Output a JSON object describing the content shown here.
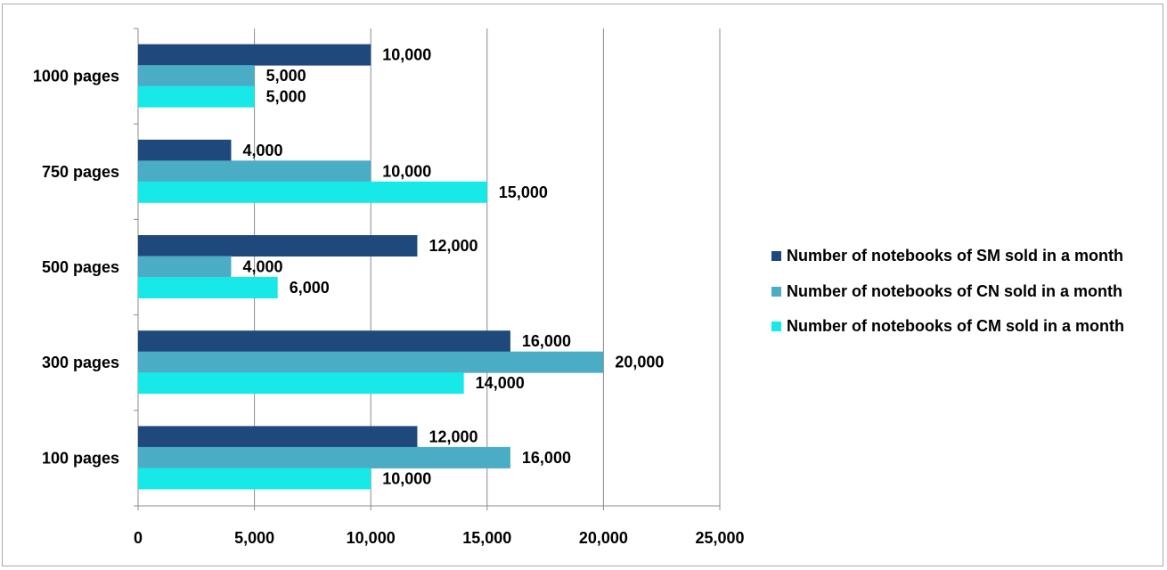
{
  "chart_data": {
    "type": "bar",
    "orientation": "horizontal",
    "categories": [
      "1000 pages",
      "750 pages",
      "500 pages",
      "300 pages",
      "100 pages"
    ],
    "series": [
      {
        "name": "Number of notebooks of SM sold in a month",
        "values": [
          10000,
          4000,
          12000,
          16000,
          12000
        ],
        "color": "#1f497d"
      },
      {
        "name": "Number of notebooks of CN sold in a month",
        "values": [
          5000,
          10000,
          4000,
          20000,
          16000
        ],
        "color": "#4bacc6"
      },
      {
        "name": "Number of notebooks of CM sold in a month",
        "values": [
          5000,
          15000,
          6000,
          14000,
          10000
        ],
        "color": "#17e9e9"
      }
    ],
    "data_labels": [
      [
        "10,000",
        "5,000",
        "5,000"
      ],
      [
        "4,000",
        "10,000",
        "15,000"
      ],
      [
        "12,000",
        "4,000",
        "6,000"
      ],
      [
        "16,000",
        "20,000",
        "14,000"
      ],
      [
        "12,000",
        "16,000",
        "10,000"
      ]
    ],
    "x_ticks": [
      0,
      5000,
      10000,
      15000,
      20000,
      25000
    ],
    "x_tick_labels": [
      "0",
      "5,000",
      "10,000",
      "15,000",
      "20,000",
      "25,000"
    ],
    "xlim": [
      0,
      25000
    ],
    "grid": true,
    "legend_position": "right",
    "title": "",
    "xlabel": "",
    "ylabel": ""
  }
}
